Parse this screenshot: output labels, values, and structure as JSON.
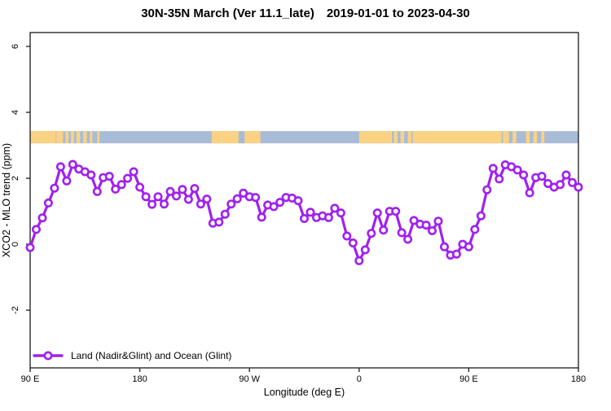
{
  "title": {
    "region_period": "30N-35N March (Ver 11.1_late)",
    "date_range": "2019-01-01 to 2023-04-30"
  },
  "legend": {
    "label": "Land (Nadir&Glint) and Ocean (Glint)"
  },
  "colors": {
    "line": "#A020F0",
    "marker_fill": "#ffffff",
    "land": "#FBD283",
    "ocean": "#A8BCD8",
    "axis": "#2b2b2b",
    "text": "#000000",
    "background": "#ffffff"
  },
  "chart_data": {
    "type": "line",
    "title": "30N-35N March (Ver 11.1_late)  2019-01-01 to 2023-04-30",
    "xlabel": "Longitude (deg E)",
    "ylabel": "XCO2 - MLO trend (ppm)",
    "xlim": [
      90,
      540
    ],
    "ylim": [
      -3.75,
      6.42
    ],
    "grid": false,
    "legend_position": "bottom-left",
    "x_ticks": [
      {
        "lon": 90,
        "label": "90 E"
      },
      {
        "lon": 180,
        "label": "180"
      },
      {
        "lon": 270,
        "label": "90 W"
      },
      {
        "lon": 360,
        "label": "0"
      },
      {
        "lon": 450,
        "label": "90 E"
      },
      {
        "lon": 540,
        "label": "180"
      }
    ],
    "y_ticks": [
      {
        "v": 6,
        "label": "6"
      },
      {
        "v": 4,
        "label": "4"
      },
      {
        "v": 2,
        "label": "2"
      },
      {
        "v": 0,
        "label": "0"
      },
      {
        "v": -2,
        "label": "-2"
      }
    ],
    "map_strip": {
      "comment": "world coastline band 30N-35N drawn across plot",
      "value_top": 3.43,
      "value_bottom": 3.06,
      "land_segments": [
        [
          90,
          111
        ],
        [
          111.5,
          117
        ],
        [
          119,
          121.5
        ],
        [
          123.5,
          126
        ],
        [
          128,
          131
        ],
        [
          133.5,
          136.5
        ],
        [
          139,
          141
        ],
        [
          145,
          147
        ],
        [
          239,
          261
        ],
        [
          266,
          279
        ],
        [
          360,
          387
        ],
        [
          388.5,
          391.5
        ],
        [
          394,
          397
        ],
        [
          400,
          403
        ],
        [
          404,
          477
        ],
        [
          478,
          483
        ],
        [
          486,
          489
        ],
        [
          497,
          500
        ],
        [
          503,
          506
        ],
        [
          509.5,
          512
        ]
      ]
    },
    "series": [
      {
        "name": "Land (Nadir&Glint) and Ocean (Glint)",
        "x_start_lon": 90,
        "x_step_deg": 5,
        "values": [
          -0.1,
          0.45,
          0.8,
          1.25,
          1.7,
          2.35,
          1.92,
          2.42,
          2.28,
          2.2,
          2.1,
          1.6,
          2.02,
          2.06,
          1.67,
          1.81,
          2.0,
          2.2,
          1.73,
          1.44,
          1.21,
          1.44,
          1.22,
          1.6,
          1.46,
          1.66,
          1.36,
          1.69,
          1.22,
          1.37,
          0.64,
          0.67,
          0.91,
          1.22,
          1.38,
          1.55,
          1.44,
          1.42,
          0.82,
          1.19,
          1.14,
          1.27,
          1.42,
          1.4,
          1.32,
          0.78,
          0.97,
          0.81,
          0.86,
          0.81,
          1.09,
          0.95,
          0.25,
          0.04,
          -0.5,
          -0.17,
          0.33,
          0.95,
          0.43,
          1.0,
          1.0,
          0.35,
          0.15,
          0.72,
          0.61,
          0.58,
          0.41,
          0.7,
          -0.08,
          -0.33,
          -0.3,
          0.0,
          -0.08,
          0.45,
          0.86,
          1.65,
          2.3,
          1.98,
          2.41,
          2.35,
          2.25,
          2.1,
          1.56,
          2.02,
          2.06,
          1.84,
          1.73,
          1.81,
          2.1,
          1.87,
          1.73
        ]
      }
    ]
  }
}
